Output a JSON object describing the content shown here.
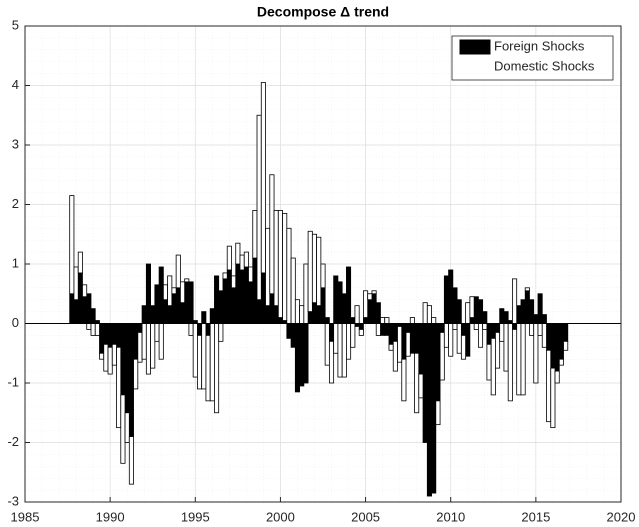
{
  "chart_data": {
    "type": "bar",
    "stacked": true,
    "title": "Decompose Δ trend",
    "x": [
      1987.75,
      1988,
      1988.25,
      1988.5,
      1988.75,
      1989,
      1989.25,
      1989.5,
      1989.75,
      1990,
      1990.25,
      1990.5,
      1990.75,
      1991,
      1991.25,
      1991.5,
      1991.75,
      1992,
      1992.25,
      1992.5,
      1992.75,
      1993,
      1993.25,
      1993.5,
      1993.75,
      1994,
      1994.25,
      1994.5,
      1994.75,
      1995,
      1995.25,
      1995.5,
      1995.75,
      1996,
      1996.25,
      1996.5,
      1996.75,
      1997,
      1997.25,
      1997.5,
      1997.75,
      1998,
      1998.25,
      1998.5,
      1998.75,
      1999,
      1999.25,
      1999.5,
      1999.75,
      2000,
      2000.25,
      2000.5,
      2000.75,
      2001,
      2001.25,
      2001.5,
      2001.75,
      2002,
      2002.25,
      2002.5,
      2002.75,
      2003,
      2003.25,
      2003.5,
      2003.75,
      2004,
      2004.25,
      2004.5,
      2004.75,
      2005,
      2005.25,
      2005.5,
      2005.75,
      2006,
      2006.25,
      2006.5,
      2006.75,
      2007,
      2007.25,
      2007.5,
      2007.75,
      2008,
      2008.25,
      2008.5,
      2008.75,
      2009,
      2009.25,
      2009.5,
      2009.75,
      2010,
      2010.25,
      2010.5,
      2010.75,
      2011,
      2011.25,
      2011.5,
      2011.75,
      2012,
      2012.25,
      2012.5,
      2012.75,
      2013,
      2013.25,
      2013.5,
      2013.75,
      2014,
      2014.25,
      2014.5,
      2014.75,
      2015,
      2015.25,
      2015.5,
      2015.75,
      2016,
      2016.25,
      2016.5,
      2016.75
    ],
    "series": [
      {
        "name": "Foreign Shocks",
        "color": "#000000",
        "values": [
          0.5,
          0.4,
          0.85,
          0.45,
          0.5,
          0.25,
          0.05,
          -0.5,
          -0.35,
          -0.4,
          -0.35,
          -0.4,
          -1.2,
          -1.5,
          -1.9,
          -0.6,
          -0.15,
          0.3,
          1.0,
          0.3,
          0.65,
          0.95,
          0.4,
          0.3,
          0.5,
          0.6,
          0.35,
          0.7,
          0.7,
          0.05,
          -0.2,
          0.2,
          -0.2,
          0.25,
          0.8,
          0.55,
          0.75,
          0.9,
          0.6,
          1.0,
          0.9,
          0.95,
          0.7,
          1.1,
          0.4,
          0.85,
          0.3,
          0.5,
          0.3,
          0.1,
          0.05,
          -0.25,
          -0.4,
          -1.15,
          -1.05,
          -1.0,
          0.2,
          0.35,
          0.3,
          0.6,
          0.1,
          -0.3,
          0.8,
          0.7,
          0.5,
          0.95,
          0.1,
          -0.05,
          -0.1,
          0.1,
          0.4,
          0.5,
          0.35,
          -0.2,
          -0.2,
          -0.35,
          -0.3,
          -0.05,
          -0.6,
          -0.15,
          -0.5,
          -0.5,
          -0.85,
          -2.0,
          -2.9,
          -2.85,
          -1.3,
          -0.15,
          0.8,
          0.9,
          0.6,
          0.4,
          -0.2,
          -0.55,
          0.1,
          0.45,
          0.4,
          0.2,
          -0.35,
          -0.25,
          -0.15,
          0.25,
          0.2,
          0.05,
          -0.1,
          0.3,
          0.4,
          0.55,
          0.4,
          0.15,
          0.5,
          0.15,
          -0.45,
          -0.75,
          -0.8,
          -0.6,
          -0.3
        ]
      },
      {
        "name": "Domestic Shocks",
        "color": "#ffffff",
        "values": [
          1.65,
          0.55,
          0.35,
          0.2,
          -0.1,
          -0.2,
          -0.2,
          -0.1,
          -0.45,
          -0.45,
          -0.35,
          -1.35,
          -1.15,
          -0.5,
          -0.8,
          -0.5,
          -0.5,
          -0.6,
          -0.85,
          -0.75,
          -0.3,
          -0.6,
          0.25,
          0.5,
          0.1,
          0.55,
          0.35,
          0.05,
          -0.2,
          -0.9,
          -0.9,
          -1.1,
          -1.1,
          -1.3,
          -1.5,
          -0.3,
          0.1,
          0.4,
          0.2,
          0.35,
          0.25,
          0.25,
          0.25,
          0.8,
          3.1,
          3.2,
          1.3,
          2.0,
          1.6,
          1.8,
          1.8,
          1.6,
          1.1,
          0.4,
          0.3,
          1.0,
          1.35,
          1.15,
          1.15,
          0.4,
          -0.7,
          -0.7,
          -0.5,
          -0.9,
          -0.9,
          -0.6,
          -0.4,
          0.3,
          -0.1,
          0.45,
          0.1,
          0.05,
          -0.2,
          0.1,
          0.1,
          -0.1,
          -0.5,
          -0.6,
          -0.7,
          -0.4,
          0.1,
          -1.0,
          -0.4,
          0.35,
          0.3,
          0.1,
          -0.4,
          -0.8,
          -0.4,
          -0.55,
          -0.1,
          -0.5,
          -0.4,
          0.35,
          0.35,
          -0.1,
          -0.4,
          -0.1,
          -0.6,
          -0.95,
          -0.6,
          -0.3,
          -0.8,
          -1.3,
          0.75,
          -1.2,
          -1.2,
          0.05,
          -0.2,
          -1.0,
          -0.2,
          -0.4,
          -1.2,
          -1.0,
          -0.2,
          -0.1,
          -0.15
        ]
      }
    ],
    "xlim": [
      1985,
      2020
    ],
    "xticks": [
      1985,
      1990,
      1995,
      2000,
      2005,
      2010,
      2015,
      2020
    ],
    "ylim": [
      -3,
      5
    ],
    "yticks": [
      -3,
      -2,
      -1,
      0,
      1,
      2,
      3,
      4,
      5
    ],
    "grid": true,
    "minor_grid": true,
    "legend": "northeast"
  }
}
